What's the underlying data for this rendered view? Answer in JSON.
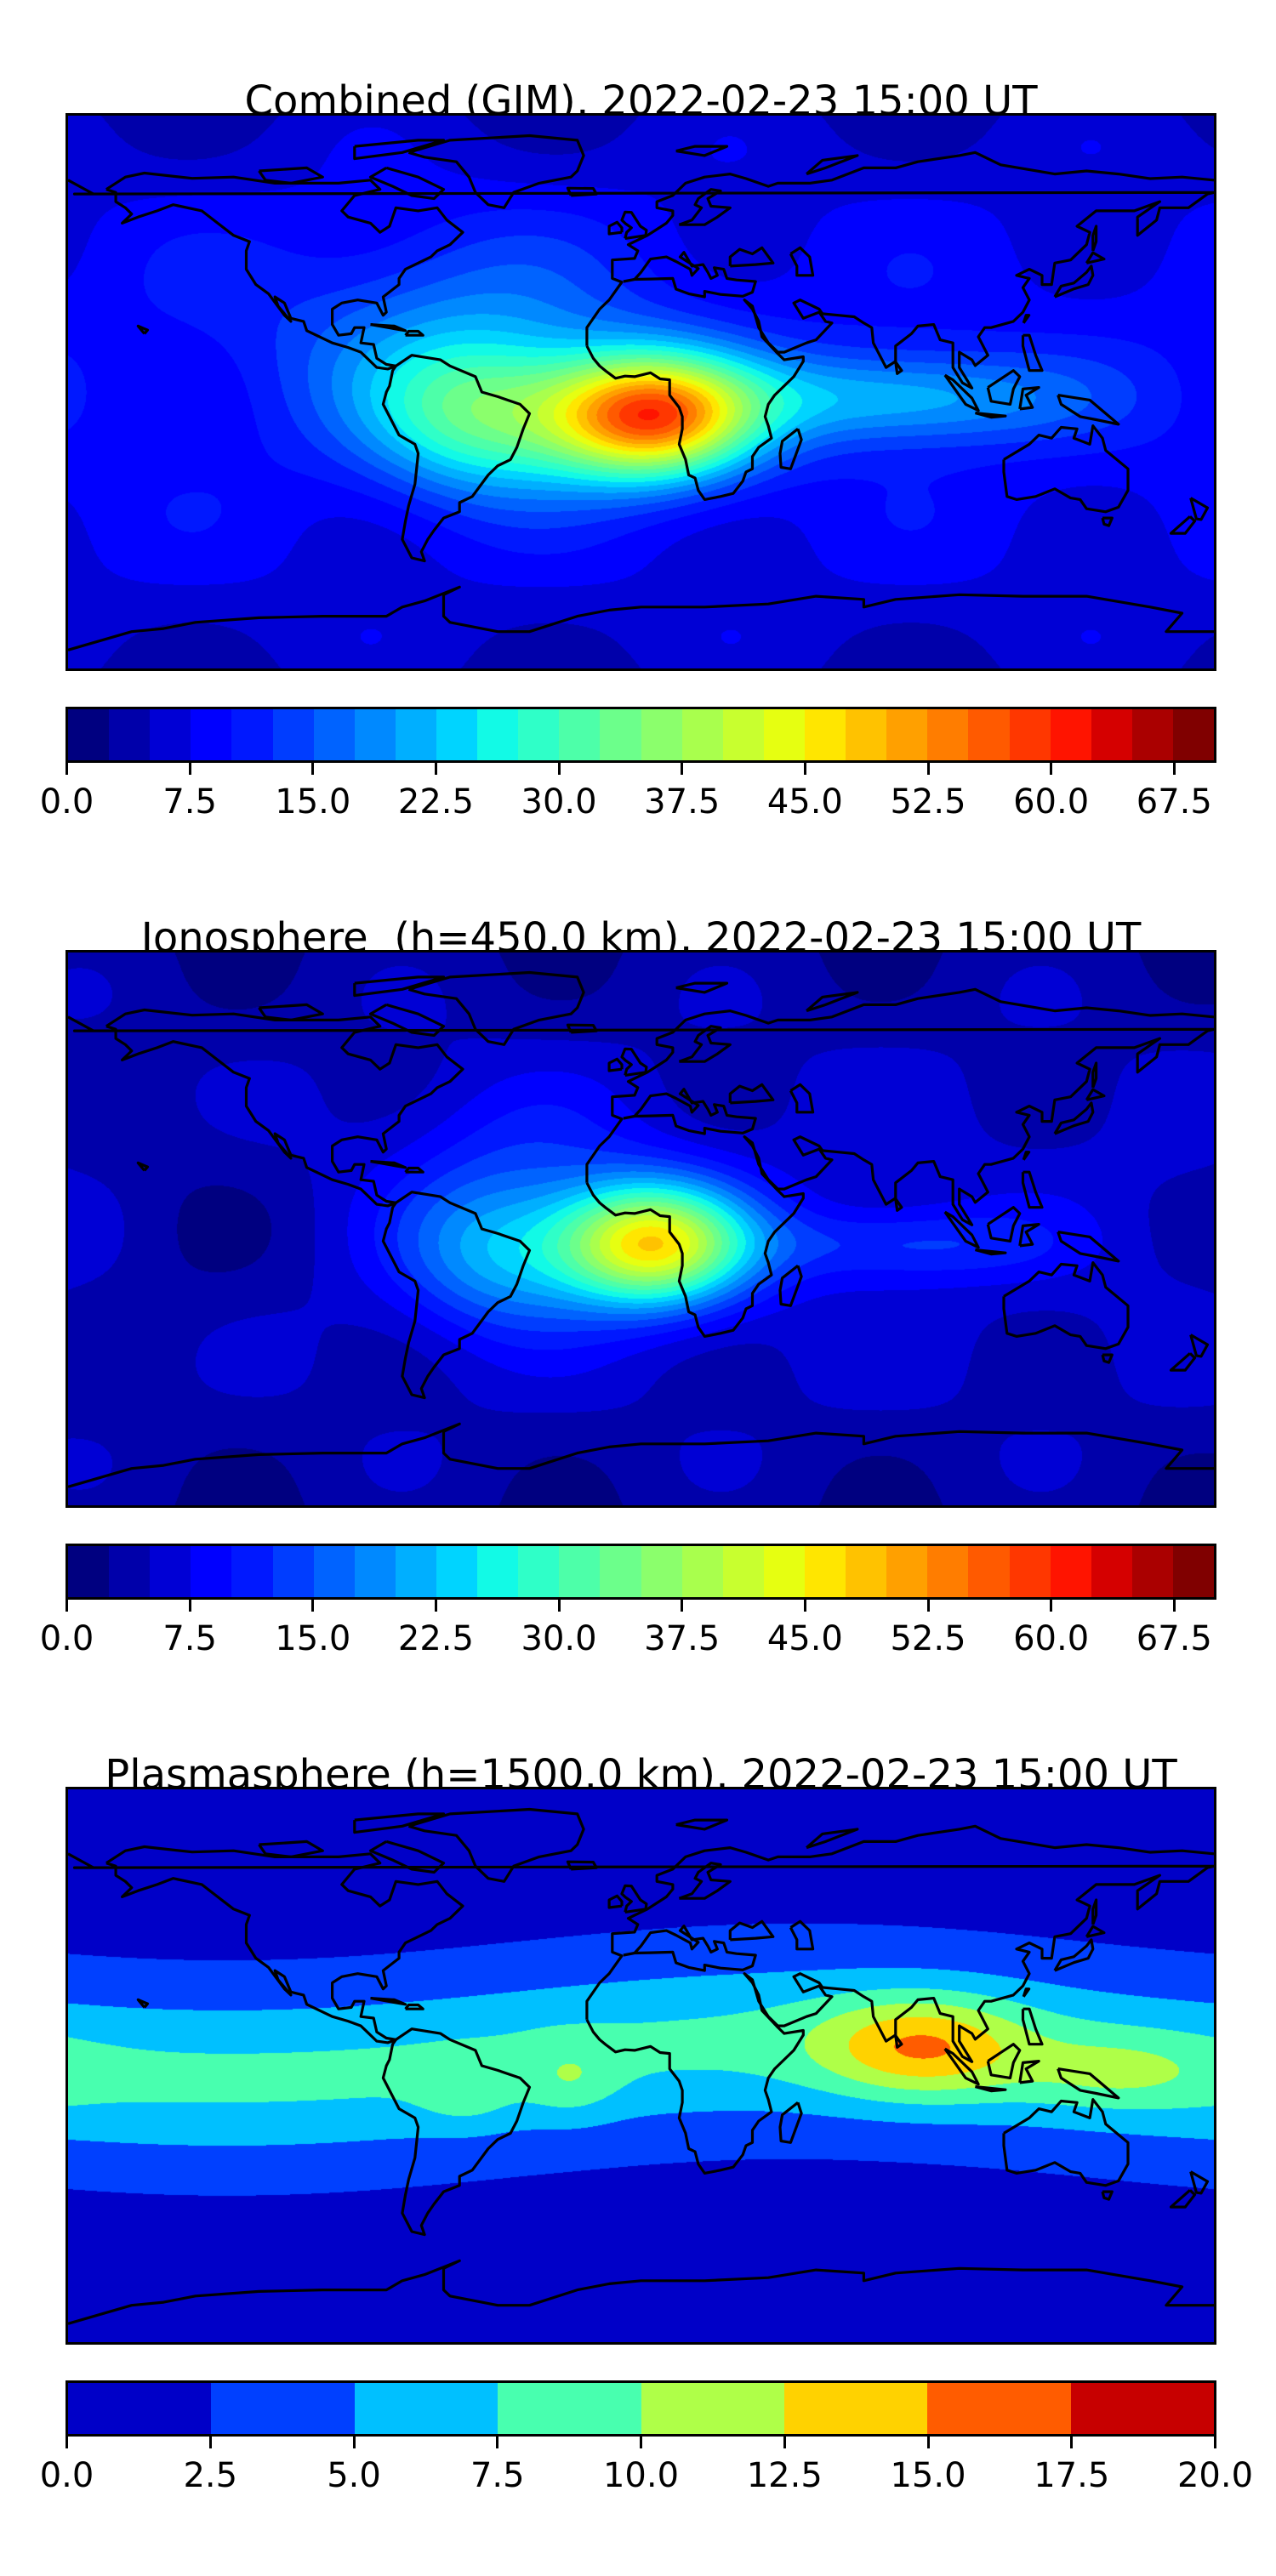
{
  "figure": {
    "panels": [
      {
        "id": "combined",
        "title": "Combined (GIM), 2022-02-23 15:00 UT",
        "colorbar": {
          "min": 0,
          "max": 70,
          "step": 2.5,
          "colors": [
            "#000080",
            "#0000AA",
            "#0000D5",
            "#0000FF",
            "#0018FF",
            "#003DFF",
            "#0063FF",
            "#0089FF",
            "#00AFFF",
            "#00D4FF",
            "#12FAE6",
            "#2FFFC8",
            "#4DFFA9",
            "#6CFF8B",
            "#8BFF6C",
            "#A9FF4D",
            "#C8FF2F",
            "#E6FF11",
            "#FFE600",
            "#FFC200",
            "#FFA000",
            "#FF7D00",
            "#FF5A00",
            "#FF3700",
            "#FF1400",
            "#D50000",
            "#AA0000",
            "#800000"
          ],
          "ticks": [
            {
              "value": 0,
              "label": "0.0"
            },
            {
              "value": 7.5,
              "label": "7.5"
            },
            {
              "value": 15,
              "label": "15.0"
            },
            {
              "value": 22.5,
              "label": "22.5"
            },
            {
              "value": 30,
              "label": "30.0"
            },
            {
              "value": 37.5,
              "label": "37.5"
            },
            {
              "value": 45,
              "label": "45.0"
            },
            {
              "value": 52.5,
              "label": "52.5"
            },
            {
              "value": 60,
              "label": "60.0"
            },
            {
              "value": 67.5,
              "label": "67.5"
            }
          ]
        }
      },
      {
        "id": "ionosphere",
        "title": "Ionosphere  (h=450.0 km), 2022-02-23 15:00 UT",
        "colorbar": {
          "min": 0,
          "max": 70,
          "step": 2.5,
          "colors": [
            "#000080",
            "#0000AA",
            "#0000D5",
            "#0000FF",
            "#0018FF",
            "#003DFF",
            "#0063FF",
            "#0089FF",
            "#00AFFF",
            "#00D4FF",
            "#12FAE6",
            "#2FFFC8",
            "#4DFFA9",
            "#6CFF8B",
            "#8BFF6C",
            "#A9FF4D",
            "#C8FF2F",
            "#E6FF11",
            "#FFE600",
            "#FFC200",
            "#FFA000",
            "#FF7D00",
            "#FF5A00",
            "#FF3700",
            "#FF1400",
            "#D50000",
            "#AA0000",
            "#800000"
          ],
          "ticks": [
            {
              "value": 0,
              "label": "0.0"
            },
            {
              "value": 7.5,
              "label": "7.5"
            },
            {
              "value": 15,
              "label": "15.0"
            },
            {
              "value": 22.5,
              "label": "22.5"
            },
            {
              "value": 30,
              "label": "30.0"
            },
            {
              "value": 37.5,
              "label": "37.5"
            },
            {
              "value": 45,
              "label": "45.0"
            },
            {
              "value": 52.5,
              "label": "52.5"
            },
            {
              "value": 60,
              "label": "60.0"
            },
            {
              "value": 67.5,
              "label": "67.5"
            }
          ]
        }
      },
      {
        "id": "plasmasphere",
        "title": "Plasmasphere (h=1500.0 km), 2022-02-23 15:00 UT",
        "colorbar": {
          "min": 0,
          "max": 20,
          "step": 2.5,
          "colors": [
            "#0000C8",
            "#0040FF",
            "#00C0FF",
            "#48FFAF",
            "#AFFF48",
            "#FFD200",
            "#FF5C00",
            "#C70000"
          ],
          "ticks": [
            {
              "value": 0,
              "label": "0.0"
            },
            {
              "value": 2.5,
              "label": "2.5"
            },
            {
              "value": 5,
              "label": "5.0"
            },
            {
              "value": 7.5,
              "label": "7.5"
            },
            {
              "value": 10,
              "label": "10.0"
            },
            {
              "value": 12.5,
              "label": "12.5"
            },
            {
              "value": 15,
              "label": "15.0"
            },
            {
              "value": 17.5,
              "label": "17.5"
            },
            {
              "value": 20,
              "label": "20.0"
            }
          ]
        }
      }
    ]
  }
}
